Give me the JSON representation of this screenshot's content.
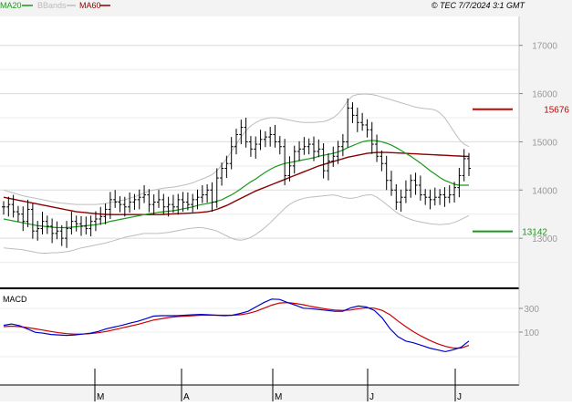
{
  "header": {
    "legend": [
      {
        "label": "MA20",
        "color": "#1a9a1a"
      },
      {
        "label": "BBands",
        "color": "#bdbdbd"
      },
      {
        "label": "MA60",
        "color": "#8b0000"
      }
    ],
    "copyright": "© TEC 7/7/2024 3:1 GMT"
  },
  "colors": {
    "background": "#f3f3f3",
    "plot_bg": "#ffffff",
    "grid": "#dcdcdc",
    "price": "#000000",
    "ma20": "#1a9a1a",
    "bbands": "#bdbdbd",
    "ma60": "#8b0000",
    "macd": "#0000cc",
    "signal": "#cc0000",
    "resistance": "#cc0000",
    "support": "#1a9a1a"
  },
  "chart_data": [
    {
      "type": "ohlc",
      "title": "",
      "y_ticks": [
        "17000",
        "16000",
        "15000",
        "14000",
        "13000"
      ],
      "ylim": [
        12000,
        17600
      ],
      "x_ticks": [
        "M",
        "A",
        "M",
        "J",
        "J"
      ],
      "levels": [
        {
          "label": "15676",
          "value": 15676,
          "role": "resistance"
        },
        {
          "label": "13142",
          "value": 13142,
          "role": "support"
        }
      ],
      "price_close": [
        13650,
        13700,
        13550,
        13500,
        13350,
        13600,
        13150,
        13200,
        13350,
        13250,
        13100,
        13150,
        13000,
        13200,
        13350,
        13300,
        13250,
        13200,
        13350,
        13400,
        13450,
        13600,
        13800,
        13750,
        13700,
        13650,
        13750,
        13800,
        13850,
        13900,
        13700,
        13750,
        13800,
        13650,
        13700,
        13650,
        13800,
        13750,
        13700,
        13800,
        13850,
        13900,
        14000,
        13750,
        14250,
        14450,
        14550,
        14900,
        15150,
        15300,
        15000,
        14850,
        14950,
        15050,
        15100,
        15150,
        15000,
        14900,
        14300,
        14500,
        14800,
        14850,
        14900,
        14950,
        14800,
        14850,
        14400,
        14600,
        14700,
        14900,
        15000,
        15700,
        15550,
        15400,
        15350,
        15250,
        14950,
        14700,
        14550,
        14200,
        14000,
        13750,
        13850,
        14000,
        14200,
        14100,
        13900,
        13850,
        13800,
        13850,
        13900,
        13850,
        13900,
        14050,
        14300,
        14650,
        14450
      ],
      "ma20": [
        13400,
        13380,
        13360,
        13340,
        13320,
        13300,
        13280,
        13260,
        13250,
        13240,
        13230,
        13220,
        13220,
        13220,
        13230,
        13240,
        13250,
        13260,
        13270,
        13280,
        13300,
        13320,
        13350,
        13370,
        13390,
        13410,
        13430,
        13450,
        13470,
        13490,
        13510,
        13520,
        13540,
        13550,
        13560,
        13570,
        13590,
        13610,
        13630,
        13650,
        13680,
        13700,
        13720,
        13740,
        13770,
        13800,
        13850,
        13900,
        13960,
        14030,
        14100,
        14170,
        14230,
        14300,
        14370,
        14430,
        14480,
        14520,
        14550,
        14570,
        14590,
        14610,
        14630,
        14650,
        14670,
        14700,
        14720,
        14740,
        14760,
        14790,
        14830,
        14880,
        14920,
        14960,
        15000,
        15020,
        15030,
        15020,
        15000,
        14970,
        14930,
        14880,
        14820,
        14760,
        14700,
        14630,
        14560,
        14480,
        14400,
        14330,
        14260,
        14200,
        14160,
        14120,
        14100,
        14100,
        14100
      ],
      "bb_upper": [
        14000,
        13970,
        13940,
        13910,
        13880,
        13860,
        13840,
        13820,
        13800,
        13780,
        13760,
        13740,
        13730,
        13720,
        13710,
        13700,
        13700,
        13700,
        13700,
        13700,
        13710,
        13720,
        13740,
        13760,
        13780,
        13800,
        13830,
        13860,
        13900,
        13940,
        13980,
        14000,
        14020,
        14040,
        14050,
        14060,
        14080,
        14100,
        14120,
        14150,
        14190,
        14230,
        14270,
        14320,
        14400,
        14520,
        14650,
        14800,
        14950,
        15100,
        15230,
        15330,
        15400,
        15450,
        15480,
        15500,
        15500,
        15490,
        15470,
        15450,
        15430,
        15410,
        15400,
        15400,
        15400,
        15410,
        15420,
        15450,
        15500,
        15580,
        15700,
        15850,
        15950,
        15980,
        15990,
        15990,
        15980,
        15960,
        15930,
        15900,
        15870,
        15840,
        15810,
        15780,
        15750,
        15720,
        15700,
        15690,
        15680,
        15660,
        15600,
        15500,
        15350,
        15200,
        15050,
        14950,
        14900
      ],
      "bb_lower": [
        12800,
        12790,
        12780,
        12770,
        12760,
        12740,
        12720,
        12700,
        12690,
        12690,
        12700,
        12700,
        12710,
        12720,
        12740,
        12770,
        12800,
        12820,
        12840,
        12860,
        12880,
        12900,
        12930,
        12960,
        12990,
        13020,
        13040,
        13060,
        13080,
        13100,
        13100,
        13100,
        13100,
        13110,
        13120,
        13140,
        13160,
        13180,
        13200,
        13210,
        13220,
        13220,
        13200,
        13180,
        13150,
        13100,
        13050,
        13000,
        12970,
        12960,
        12980,
        13020,
        13080,
        13150,
        13230,
        13320,
        13420,
        13520,
        13620,
        13700,
        13760,
        13800,
        13830,
        13850,
        13860,
        13870,
        13880,
        13890,
        13900,
        13880,
        13850,
        13830,
        13830,
        13850,
        13880,
        13900,
        13900,
        13850,
        13780,
        13700,
        13620,
        13540,
        13480,
        13430,
        13390,
        13360,
        13340,
        13320,
        13300,
        13290,
        13280,
        13290,
        13300,
        13330,
        13370,
        13420,
        13470
      ],
      "ma60": [
        13850,
        13830,
        13810,
        13790,
        13770,
        13750,
        13730,
        13710,
        13690,
        13670,
        13650,
        13630,
        13610,
        13590,
        13570,
        13550,
        13540,
        13530,
        13520,
        13510,
        13500,
        13495,
        13490,
        13490,
        13490,
        13490,
        13490,
        13490,
        13490,
        13490,
        13490,
        13490,
        13490,
        13495,
        13500,
        13505,
        13510,
        13515,
        13520,
        13525,
        13530,
        13540,
        13550,
        13570,
        13600,
        13640,
        13680,
        13730,
        13780,
        13830,
        13880,
        13930,
        13980,
        14020,
        14060,
        14100,
        14140,
        14180,
        14220,
        14260,
        14300,
        14340,
        14380,
        14420,
        14460,
        14500,
        14530,
        14560,
        14590,
        14620,
        14650,
        14680,
        14700,
        14720,
        14740,
        14760,
        14770,
        14780,
        14780,
        14780,
        14775,
        14770,
        14765,
        14760,
        14755,
        14750,
        14745,
        14740,
        14735,
        14730,
        14725,
        14720,
        14715,
        14710,
        14705,
        14700,
        14695
      ]
    },
    {
      "type": "line",
      "title": "MACD",
      "y_ticks": [
        "300",
        "100"
      ],
      "ylim": [
        -1,
        1
      ],
      "series": [
        {
          "name": "",
          "values": [
            0.28,
            0.31,
            0.27,
            0.2,
            0.12,
            0.1,
            0.07,
            0.06,
            0.05,
            0.06,
            0.08,
            0.1,
            0.14,
            0.2,
            0.24,
            0.28,
            0.33,
            0.37,
            0.43,
            0.49,
            0.5,
            0.5,
            0.5,
            0.51,
            0.52,
            0.53,
            0.52,
            0.51,
            0.5,
            0.51,
            0.55,
            0.6,
            0.7,
            0.8,
            0.88,
            0.87,
            0.8,
            0.74,
            0.67,
            0.66,
            0.64,
            0.62,
            0.6,
            0.6,
            0.68,
            0.72,
            0.7,
            0.62,
            0.45,
            0.2,
            0.02,
            -0.08,
            -0.12,
            -0.18,
            -0.24,
            -0.28,
            -0.32,
            -0.28,
            -0.22,
            -0.08
          ]
        },
        {
          "name": "",
          "values": [
            0.25,
            0.26,
            0.25,
            0.23,
            0.2,
            0.17,
            0.14,
            0.11,
            0.09,
            0.08,
            0.08,
            0.09,
            0.11,
            0.14,
            0.18,
            0.22,
            0.26,
            0.3,
            0.35,
            0.4,
            0.43,
            0.46,
            0.48,
            0.49,
            0.5,
            0.51,
            0.51,
            0.51,
            0.51,
            0.51,
            0.52,
            0.55,
            0.6,
            0.67,
            0.74,
            0.79,
            0.8,
            0.78,
            0.75,
            0.71,
            0.68,
            0.65,
            0.63,
            0.62,
            0.63,
            0.66,
            0.68,
            0.67,
            0.62,
            0.52,
            0.38,
            0.25,
            0.13,
            0.03,
            -0.06,
            -0.14,
            -0.2,
            -0.24,
            -0.24,
            -0.18
          ]
        }
      ]
    }
  ]
}
